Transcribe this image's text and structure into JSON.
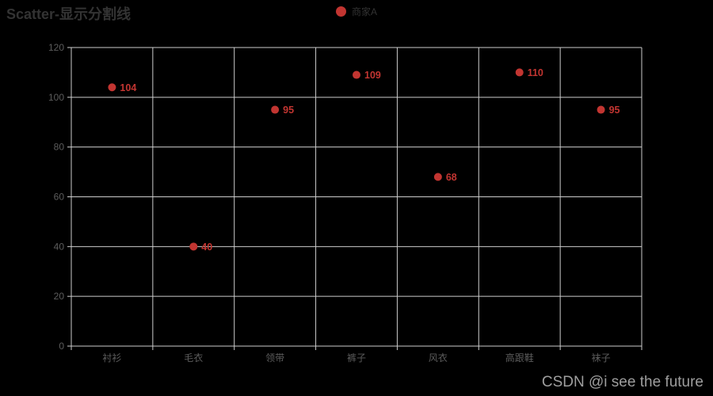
{
  "title": {
    "text": "Scatter-显示分割线"
  },
  "legend": {
    "position": "top-center",
    "items": [
      {
        "label": "商家A",
        "color": "#c23531"
      }
    ]
  },
  "watermark": "CSDN @i see the future",
  "colors": {
    "background": "#000000",
    "title_text": "#333333",
    "legend_text": "#333333",
    "axis_line": "#cccccc",
    "split_line": "#cccccc",
    "axis_label": "#5c5c5c",
    "point": "#c23531",
    "point_label": "#c23531",
    "watermark_text": "#9e9e9e"
  },
  "chart_data": {
    "type": "scatter",
    "title": "Scatter-显示分割线",
    "categories": [
      "衬衫",
      "毛衣",
      "领带",
      "裤子",
      "风衣",
      "高跟鞋",
      "袜子"
    ],
    "series": [
      {
        "name": "商家A",
        "values": [
          104,
          40,
          95,
          109,
          68,
          110,
          95
        ],
        "color": "#c23531"
      }
    ],
    "xlabel": "",
    "ylabel": "",
    "ylim": [
      0,
      120
    ],
    "y_ticks": [
      0,
      20,
      40,
      60,
      80,
      100,
      120
    ],
    "grid": true,
    "split_lines": "both horizontal and vertical category split lines shown",
    "legend_position": "top-center",
    "point_labels": "value displayed to the right of each point"
  }
}
